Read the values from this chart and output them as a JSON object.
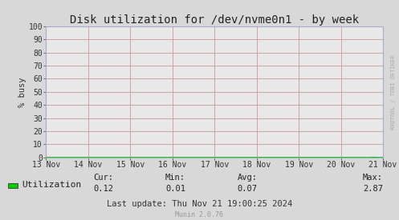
{
  "title": "Disk utilization for /dev/nvme0n1 - by week",
  "ylabel": "% busy",
  "background_color": "#d8d8d8",
  "plot_bg_color": "#e8e8e8",
  "grid_color_major": "#cc9999",
  "grid_color_minor": "#ddbbbb",
  "line_color": "#00cc00",
  "arrow_color": "#8888cc",
  "spine_color": "#aaaacc",
  "ylim": [
    0,
    100
  ],
  "yticks": [
    0,
    10,
    20,
    30,
    40,
    50,
    60,
    70,
    80,
    90,
    100
  ],
  "xtick_labels": [
    "13 Nov",
    "14 Nov",
    "15 Nov",
    "16 Nov",
    "17 Nov",
    "18 Nov",
    "19 Nov",
    "20 Nov",
    "21 Nov"
  ],
  "legend_label": "Utilization",
  "legend_color": "#00cc00",
  "cur_label": "Cur:",
  "min_label": "Min:",
  "avg_label": "Avg:",
  "max_label": "Max:",
  "cur_val": "0.12",
  "min_val": "0.01",
  "avg_val": "0.07",
  "max_val": "2.87",
  "last_update": "Last update: Thu Nov 21 19:00:25 2024",
  "watermark": "RRDTOOL / TOBI OETIKER",
  "munin_version": "Munin 2.0.76",
  "title_fontsize": 10,
  "axis_label_fontsize": 7.5,
  "tick_fontsize": 7,
  "legend_fontsize": 8,
  "stats_fontsize": 7.5,
  "watermark_fontsize": 5,
  "munin_fontsize": 6
}
